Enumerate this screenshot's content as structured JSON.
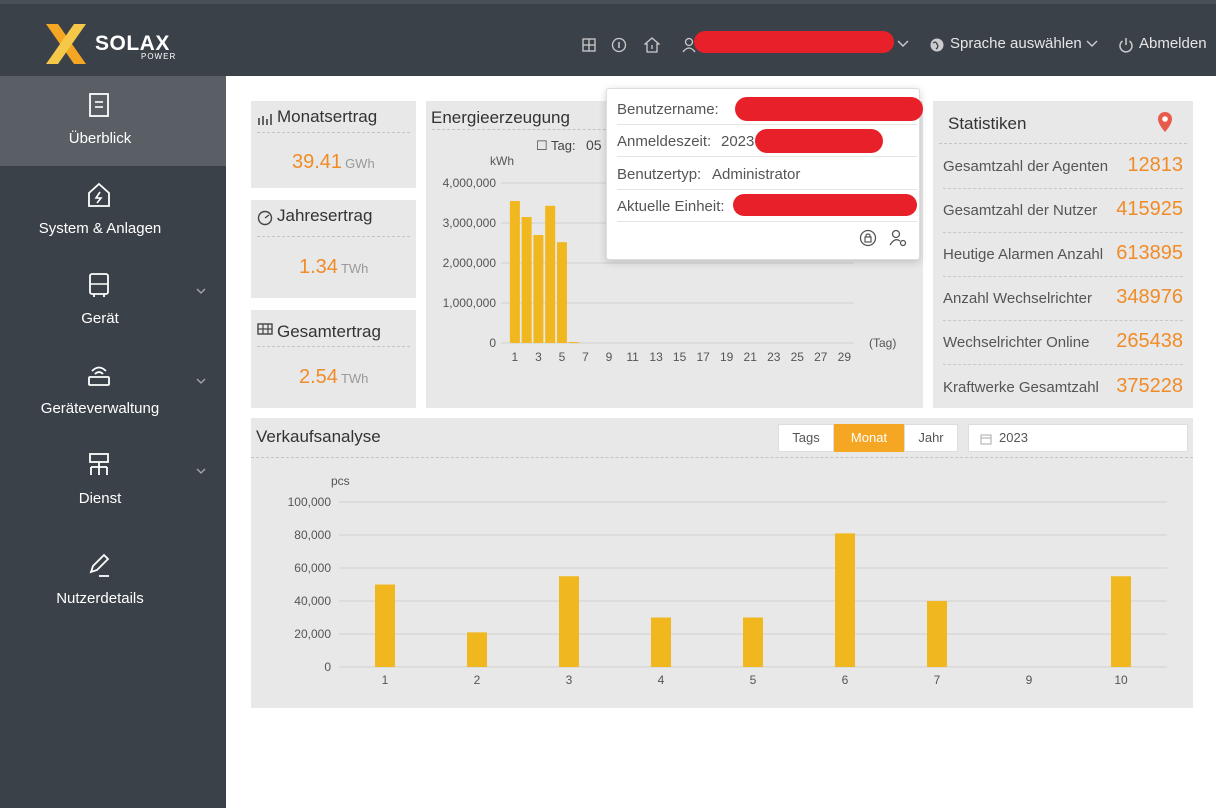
{
  "header": {
    "logo_text": "SOLAX",
    "logo_sub": "POWER",
    "language_label": "Sprache auswählen",
    "logout_label": "Abmelden"
  },
  "sidebar": {
    "items": [
      {
        "label": "Überblick",
        "icon": "document-icon"
      },
      {
        "label": "System & Anlagen",
        "icon": "house-bolt-icon"
      },
      {
        "label": "Gerät",
        "icon": "inverter-icon"
      },
      {
        "label": "Geräteverwaltung",
        "icon": "router-icon"
      },
      {
        "label": "Dienst",
        "icon": "network-icon"
      },
      {
        "label": "Nutzerdetails",
        "icon": "edit-icon"
      }
    ]
  },
  "yield": {
    "month": {
      "title": "Monatsertrag",
      "value": "39.41",
      "unit": "GWh"
    },
    "year": {
      "title": "Jahresertrag",
      "value": "1.34",
      "unit": "TWh"
    },
    "total": {
      "title": "Gesamtertrag",
      "value": "2.54",
      "unit": "TWh"
    }
  },
  "energy": {
    "title": "Energieerzeugung",
    "day_label": "Tag",
    "day_value": "05"
  },
  "popup": {
    "username_label": "Benutzername:",
    "login_time_label": "Anmeldeszeit:",
    "login_time_value": "2023",
    "user_type_label": "Benutzertyp:",
    "user_type_value": "Administrator",
    "unit_label": "Aktuelle Einheit:"
  },
  "stats": {
    "title": "Statistiken",
    "rows": [
      {
        "label": "Gesamtzahl der Agenten",
        "value": "12813"
      },
      {
        "label": "Gesamtzahl der Nutzer",
        "value": "415925"
      },
      {
        "label": "Heutige Alarmen Anzahl",
        "value": "613895"
      },
      {
        "label": "Anzahl Wechselrichter",
        "value": "348976"
      },
      {
        "label": "Wechselrichter Online",
        "value": "265438"
      },
      {
        "label": "Kraftwerke Gesamtzahl",
        "value": "375228"
      }
    ]
  },
  "sales": {
    "title": "Verkaufsanalyse",
    "tabs": [
      "Tags",
      "Monat",
      "Jahr"
    ],
    "active_tab": "Monat",
    "year": "2023"
  },
  "colors": {
    "accent": "#f08c28",
    "bar": "#f0b81e",
    "header_bg": "#3b4149",
    "redaction": "#e8202a"
  },
  "chart_data": [
    {
      "type": "bar",
      "ylabel": "kWh",
      "xlabel": "(Tag)",
      "x_ticks": [
        1,
        3,
        5,
        7,
        9,
        11,
        13,
        15,
        17,
        19,
        21,
        23,
        25,
        27,
        29
      ],
      "categories": [
        1,
        2,
        3,
        4,
        5,
        6
      ],
      "values": [
        3550000,
        3150000,
        2700000,
        3430000,
        2520000,
        25000
      ],
      "ylim": [
        0,
        4000000
      ],
      "y_ticks": [
        "4,000,000",
        "3,000,000",
        "2,000,000",
        "1,000,000",
        "0"
      ],
      "grid": true
    },
    {
      "type": "bar",
      "ylabel": "pcs",
      "categories": [
        "1",
        "2",
        "3",
        "4",
        "5",
        "6",
        "7",
        "9",
        "10"
      ],
      "values": [
        50000,
        21000,
        55000,
        30000,
        30000,
        81000,
        40000,
        0,
        55000
      ],
      "ylim": [
        0,
        100000
      ],
      "y_ticks": [
        "100,000",
        "80,000",
        "60,000",
        "40,000",
        "20,000",
        "0"
      ],
      "grid": true
    }
  ]
}
